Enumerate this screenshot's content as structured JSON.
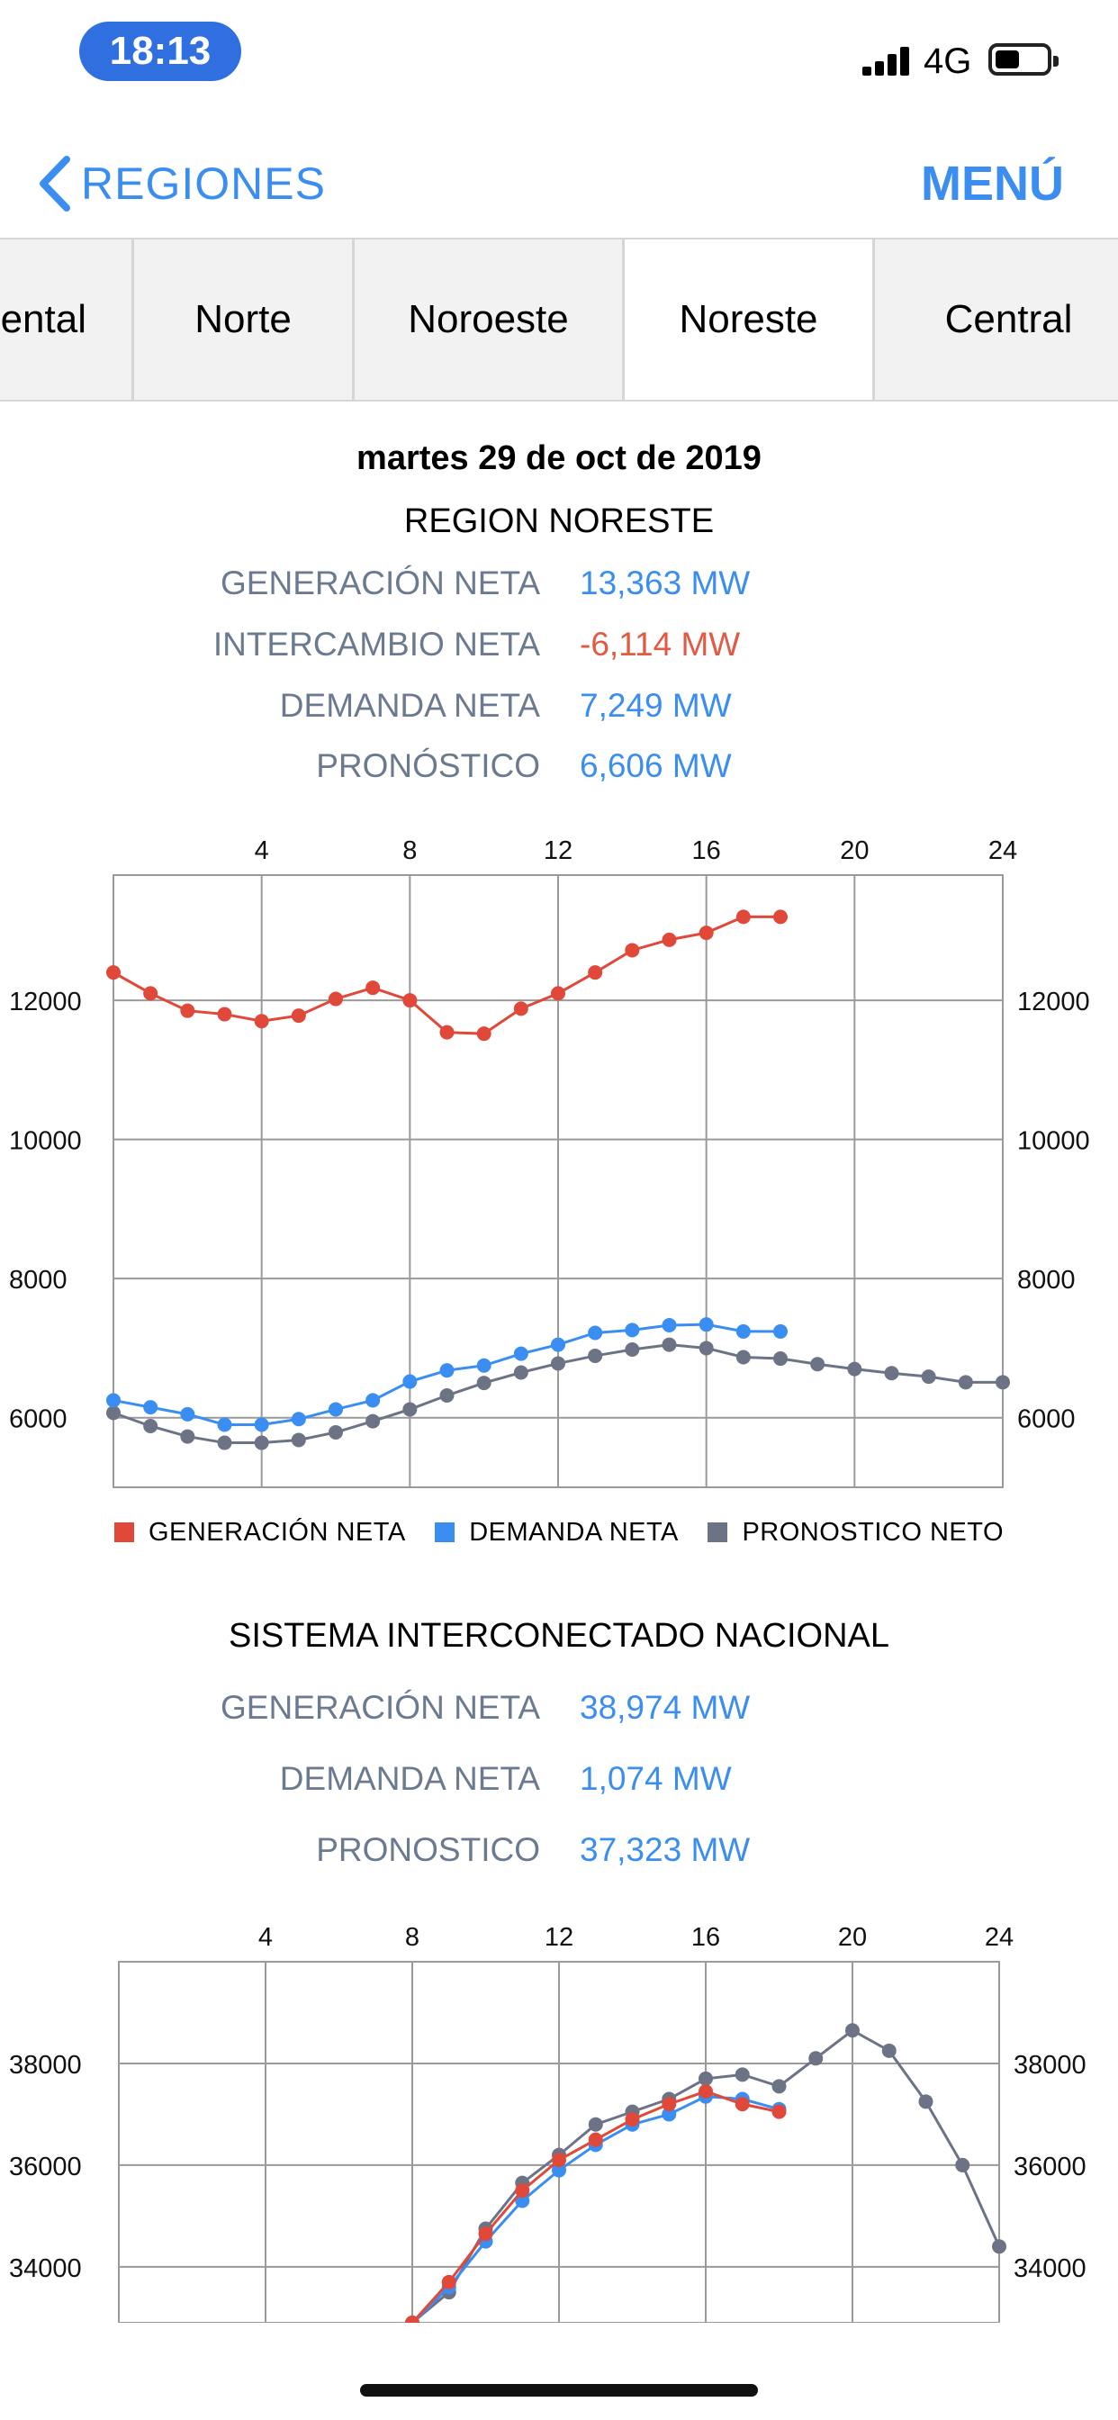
{
  "status_bar": {
    "time": "18:13",
    "network": "4G",
    "icons": [
      "signal-icon",
      "battery-icon"
    ]
  },
  "nav": {
    "back_label": "REGIONES",
    "back_icon": "chevron-left-icon",
    "menu_label": "MENÚ"
  },
  "tabs": [
    {
      "label": "Occidental",
      "visible_text": "ental",
      "active": false
    },
    {
      "label": "Norte",
      "visible_text": "Norte",
      "active": false
    },
    {
      "label": "Noroeste",
      "visible_text": "Noroeste",
      "active": false
    },
    {
      "label": "Noreste",
      "visible_text": "Noreste",
      "active": true
    },
    {
      "label": "Central",
      "visible_text": "Central",
      "active": false
    }
  ],
  "date": "martes 29 de oct de 2019",
  "region": {
    "title": "REGION NORESTE",
    "rows": [
      {
        "label": "GENERACIÓN NETA",
        "value": "13,363 MW",
        "negative": false
      },
      {
        "label": "INTERCAMBIO NETA",
        "value": "-6,114 MW",
        "negative": true
      },
      {
        "label": "DEMANDA NETA",
        "value": "7,249 MW",
        "negative": false
      },
      {
        "label": "PRONÓSTICO",
        "value": "6,606 MW",
        "negative": false
      }
    ]
  },
  "national": {
    "title": "SISTEMA INTERCONECTADO NACIONAL",
    "rows": [
      {
        "label": "GENERACIÓN NETA",
        "value": "38,974 MW"
      },
      {
        "label": "DEMANDA NETA",
        "value": "1,074 MW"
      },
      {
        "label": "PRONOSTICO",
        "value": "37,323 MW"
      }
    ]
  },
  "legend": [
    {
      "label": "GENERACIÓN NETA",
      "color": "#e0493a"
    },
    {
      "label": "DEMANDA NETA",
      "color": "#3a8ef2"
    },
    {
      "label": "PRONOSTICO NETO",
      "color": "#6b7385"
    }
  ],
  "colors": {
    "accent": "#3b8ef0",
    "negative": "#e05a44",
    "label_gray": "#6c7a90",
    "time_pill": "#2f6fe0"
  },
  "chart_data": [
    {
      "type": "line",
      "xlim": [
        0,
        24
      ],
      "ylim": [
        5000,
        13800
      ],
      "x_ticks": [
        4,
        8,
        12,
        16,
        20,
        24
      ],
      "y_ticks": [
        6000,
        8000,
        10000,
        12000
      ],
      "grid": true,
      "legend_position": "bottom",
      "series": [
        {
          "name": "GENERACIÓN NETA",
          "color": "#e0493a",
          "x": [
            0,
            1,
            2,
            3,
            4,
            5,
            6,
            7,
            8,
            9,
            10,
            11,
            12,
            13,
            14,
            15,
            16,
            17,
            18
          ],
          "values": [
            12400,
            12100,
            11850,
            11800,
            11700,
            11780,
            12020,
            12180,
            12000,
            11540,
            11520,
            11880,
            12100,
            12400,
            12720,
            12870,
            12970,
            13200,
            13200
          ]
        },
        {
          "name": "DEMANDA NETA",
          "color": "#3a8ef2",
          "x": [
            0,
            1,
            2,
            3,
            4,
            5,
            6,
            7,
            8,
            9,
            10,
            11,
            12,
            13,
            14,
            15,
            16,
            17,
            18
          ],
          "values": [
            6250,
            6150,
            6050,
            5900,
            5900,
            5980,
            6120,
            6250,
            6520,
            6680,
            6750,
            6920,
            7050,
            7220,
            7260,
            7330,
            7340,
            7240,
            7240
          ]
        },
        {
          "name": "PRONOSTICO NETO",
          "color": "#6b7385",
          "x": [
            0,
            1,
            2,
            3,
            4,
            5,
            6,
            7,
            8,
            9,
            10,
            11,
            12,
            13,
            14,
            15,
            16,
            17,
            18,
            19,
            20,
            21,
            22,
            23,
            24
          ],
          "values": [
            6070,
            5880,
            5730,
            5640,
            5640,
            5680,
            5790,
            5950,
            6120,
            6320,
            6500,
            6650,
            6780,
            6890,
            6980,
            7050,
            7000,
            6870,
            6850,
            6770,
            6700,
            6640,
            6590,
            6510,
            6510
          ]
        }
      ]
    },
    {
      "type": "line",
      "xlim": [
        0,
        24
      ],
      "ylim": [
        32900,
        40000
      ],
      "x_ticks": [
        4,
        8,
        12,
        16,
        20,
        24
      ],
      "y_ticks": [
        34000,
        36000,
        38000
      ],
      "grid": true,
      "series": [
        {
          "name": "GENERACIÓN NETA",
          "color": "#e0493a",
          "x": [
            8,
            9,
            10,
            11,
            12,
            13,
            14,
            15,
            16,
            17,
            18
          ],
          "values": [
            32900,
            33700,
            34650,
            35500,
            36100,
            36500,
            36900,
            37200,
            37450,
            37200,
            37050
          ]
        },
        {
          "name": "DEMANDA NETA",
          "color": "#3a8ef2",
          "x": [
            8,
            9,
            10,
            11,
            12,
            13,
            14,
            15,
            16,
            17,
            18
          ],
          "values": [
            32900,
            33600,
            34500,
            35300,
            35900,
            36400,
            36800,
            37000,
            37350,
            37300,
            37100
          ]
        },
        {
          "name": "PRONOSTICO NETO",
          "color": "#6b7385",
          "x": [
            8,
            9,
            10,
            11,
            12,
            13,
            14,
            15,
            16,
            17,
            18,
            19,
            20,
            21,
            22,
            23,
            24
          ],
          "values": [
            32900,
            33500,
            34750,
            35650,
            36200,
            36800,
            37050,
            37300,
            37700,
            37780,
            37550,
            38100,
            38650,
            38250,
            37250,
            36000,
            34400
          ]
        }
      ]
    }
  ]
}
